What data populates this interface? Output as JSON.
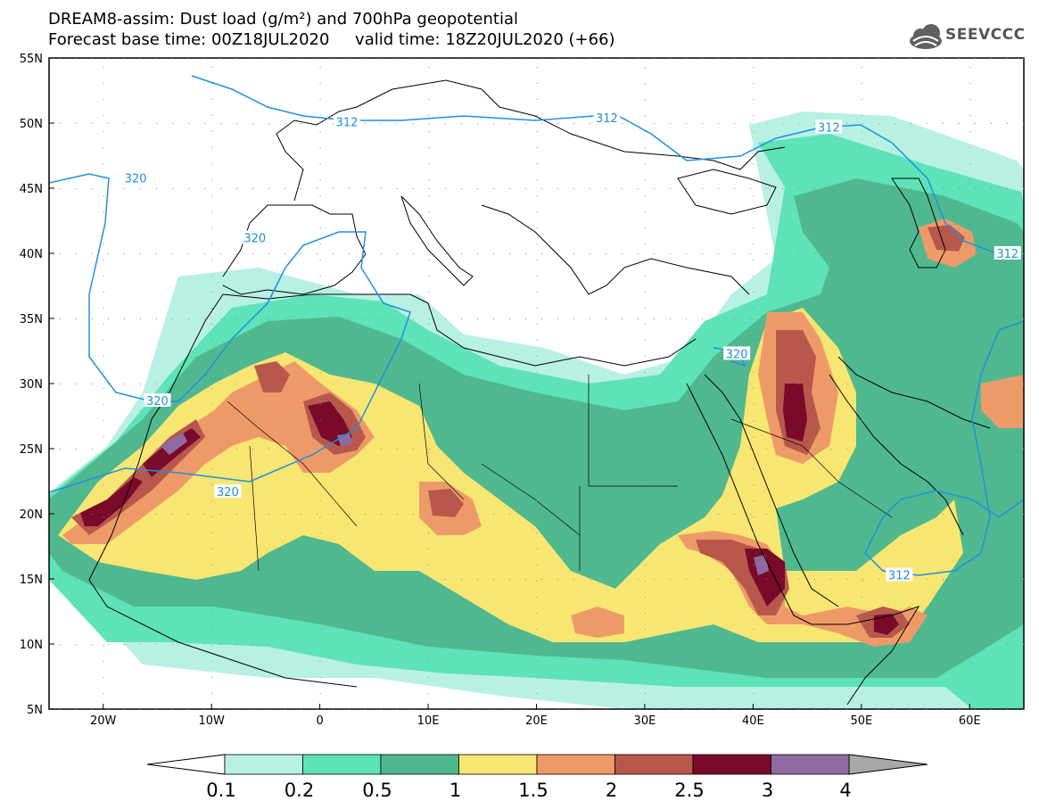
{
  "title_line1": "DREAM8-assim: Dust load (g/m²) and 700hPa geopotential",
  "title_line2": "Forecast base time: 00Z18JUL2020     valid time: 18Z20JUL2020 (+66)",
  "logo_text": "SEEVCCC",
  "map": {
    "lon_range": [
      -25,
      65
    ],
    "lat_range": [
      5,
      55
    ],
    "lon_labels": [
      {
        "lon": -20,
        "label": "20W"
      },
      {
        "lon": -10,
        "label": "10W"
      },
      {
        "lon": 0,
        "label": "0"
      },
      {
        "lon": 10,
        "label": "10E"
      },
      {
        "lon": 20,
        "label": "20E"
      },
      {
        "lon": 30,
        "label": "30E"
      },
      {
        "lon": 40,
        "label": "40E"
      },
      {
        "lon": 50,
        "label": "50E"
      },
      {
        "lon": 60,
        "label": "60E"
      }
    ],
    "lat_labels": [
      {
        "lat": 55,
        "label": "55N"
      },
      {
        "lat": 50,
        "label": "50N"
      },
      {
        "lat": 45,
        "label": "45N"
      },
      {
        "lat": 40,
        "label": "40N"
      },
      {
        "lat": 35,
        "label": "35N"
      },
      {
        "lat": 30,
        "label": "30N"
      },
      {
        "lat": 25,
        "label": "25N"
      },
      {
        "lat": 20,
        "label": "20N"
      },
      {
        "lat": 15,
        "label": "15N"
      },
      {
        "lat": 10,
        "label": "10N"
      },
      {
        "lat": 5,
        "label": "5N"
      }
    ],
    "contour_labels": [
      {
        "lon": -17,
        "lat": 45.8,
        "label": "320"
      },
      {
        "lon": 2.5,
        "lat": 50.1,
        "label": "312"
      },
      {
        "lon": 26.5,
        "lat": 50.4,
        "label": "312"
      },
      {
        "lon": 47,
        "lat": 49.7,
        "label": "312"
      },
      {
        "lon": -6,
        "lat": 41.2,
        "label": "320"
      },
      {
        "lon": -15,
        "lat": 28.7,
        "label": "320"
      },
      {
        "lon": -8.5,
        "lat": 21.7,
        "label": "320"
      },
      {
        "lon": 38.5,
        "lat": 32.3,
        "label": "320"
      },
      {
        "lon": 63.5,
        "lat": 40,
        "label": "312"
      },
      {
        "lon": 53.5,
        "lat": 15.3,
        "label": "312"
      }
    ]
  },
  "colorbar": {
    "colors": [
      "#b8f0e4",
      "#5ee2b8",
      "#50b88e",
      "#f8e672",
      "#ee9a68",
      "#b8584c",
      "#7a0a2a",
      "#8e6aa0"
    ],
    "tick_labels": [
      "0.1",
      "0.2",
      "0.5",
      "1",
      "1.5",
      "2",
      "2.5",
      "3",
      "4"
    ],
    "under_color": "#ffffff",
    "over_color": "#a8a8a8"
  },
  "fill_colors": {
    "l1": "#b8f0e4",
    "l2": "#5ee2b8",
    "l3": "#50b88e",
    "l4": "#f8e672",
    "l5": "#ee9a68",
    "l6": "#b8584c",
    "l7": "#7a0a2a",
    "l8": "#8e6aa0",
    "contour": "#1e90e0"
  }
}
